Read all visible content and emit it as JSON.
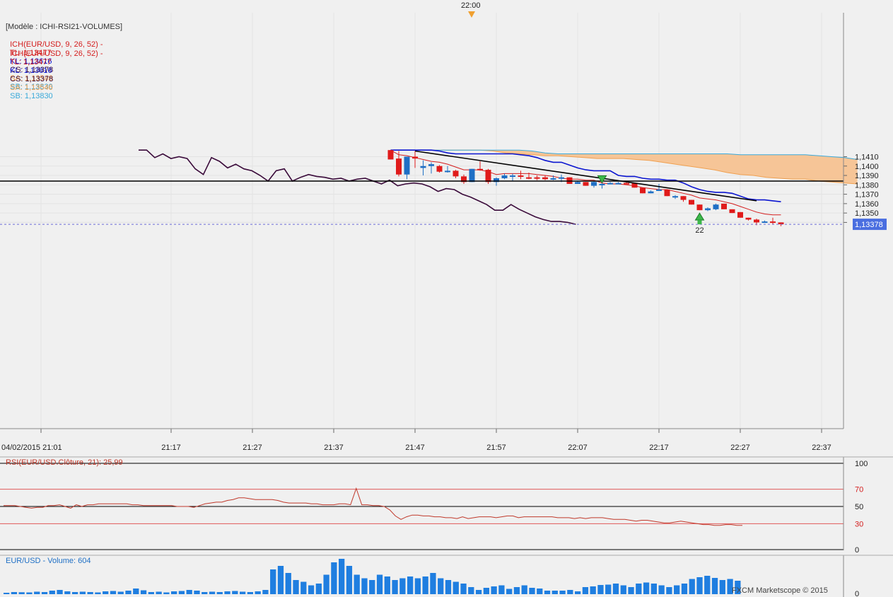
{
  "top_time_marker": "22:00",
  "template_label": "[Modèle : ICHI-RSI21-VOLUMES]",
  "ichimoku_legend": [
    {
      "prefix": "ICH(EUR/USD, 9, 26, 52) -",
      "tl": "TL: 1,13477",
      "kl": "KL: 1,13616",
      "cs": "CS: 1,13378",
      "sa": "SA: 1,13546",
      "sb": "SB: 1,13830"
    },
    {
      "prefix": "ICH(EUR/USD, 9, 26, 52) -",
      "tl": "TL: 1,13477",
      "kl": "KL: 1,13616",
      "cs": "CS: 1,13378",
      "sa": "SA: 1,13546",
      "sb": "SB: 1,13830"
    }
  ],
  "price_ticks": [
    "1,1410",
    "1,1400",
    "1,1390",
    "1,1380",
    "1,1370",
    "1,1360",
    "1,1350",
    "1,1340"
  ],
  "current_price_label": "1,13378",
  "time_ticks": [
    "04/02/2015 21:01",
    "21:17",
    "21:27",
    "21:37",
    "21:47",
    "21:57",
    "22:07",
    "22:17",
    "22:27",
    "22:37"
  ],
  "marker_label": "22",
  "rsi_title": "RSI(EUR/USD.Clôture, 21): 25,99",
  "rsi_ticks": [
    "100",
    "70",
    "50",
    "30",
    "0"
  ],
  "volume_title": "EUR/USD - Volume: 604",
  "volume_zero": "0",
  "watermark": "FXCM Marketscope © 2015",
  "colors": {
    "bull": "#1f6fc5",
    "bear": "#e01b1b",
    "tenkan": "#d41d1d",
    "kijun": "#0a14d0",
    "chikou": "#3a0a3a",
    "senkou_a": "#f0a050",
    "senkou_b": "#3aa9d9",
    "cloud": "#f6c597",
    "rsi": "#c0392b",
    "volume": "#1f7ee0"
  },
  "chart_data": {
    "type": "candlestick",
    "symbol": "EUR/USD",
    "timeframe_minutes": 1,
    "ylim": [
      1.1335,
      1.1417
    ],
    "candles": [
      {
        "t": "21:44",
        "o": 1.1417,
        "h": 1.1417,
        "l": 1.1407,
        "c": 1.1407
      },
      {
        "t": "21:45",
        "o": 1.1408,
        "h": 1.1416,
        "l": 1.1389,
        "c": 1.1391
      },
      {
        "t": "21:46",
        "o": 1.1391,
        "h": 1.141,
        "l": 1.1386,
        "c": 1.141
      },
      {
        "t": "21:47",
        "o": 1.141,
        "h": 1.1416,
        "l": 1.1398,
        "c": 1.1408
      },
      {
        "t": "21:48",
        "o": 1.1398,
        "h": 1.1406,
        "l": 1.139,
        "c": 1.14
      },
      {
        "t": "21:49",
        "o": 1.14,
        "h": 1.1404,
        "l": 1.1392,
        "c": 1.1402
      },
      {
        "t": "21:50",
        "o": 1.14,
        "h": 1.1401,
        "l": 1.1393,
        "c": 1.1394
      },
      {
        "t": "21:51",
        "o": 1.1395,
        "h": 1.14,
        "l": 1.1393,
        "c": 1.1395
      },
      {
        "t": "21:52",
        "o": 1.1395,
        "h": 1.1396,
        "l": 1.1387,
        "c": 1.1389
      },
      {
        "t": "21:53",
        "o": 1.1389,
        "h": 1.1391,
        "l": 1.1381,
        "c": 1.1383
      },
      {
        "t": "21:54",
        "o": 1.1383,
        "h": 1.1397,
        "l": 1.1383,
        "c": 1.1397
      },
      {
        "t": "21:55",
        "o": 1.1397,
        "h": 1.1405,
        "l": 1.1395,
        "c": 1.1396
      },
      {
        "t": "21:56",
        "o": 1.1396,
        "h": 1.1397,
        "l": 1.1381,
        "c": 1.1383
      },
      {
        "t": "21:57",
        "o": 1.1383,
        "h": 1.1388,
        "l": 1.1379,
        "c": 1.1387
      },
      {
        "t": "21:58",
        "o": 1.1387,
        "h": 1.1392,
        "l": 1.1386,
        "c": 1.139
      },
      {
        "t": "21:59",
        "o": 1.139,
        "h": 1.1392,
        "l": 1.1384,
        "c": 1.139
      },
      {
        "t": "22:00",
        "o": 1.139,
        "h": 1.1395,
        "l": 1.1386,
        "c": 1.1389
      },
      {
        "t": "22:01",
        "o": 1.1388,
        "h": 1.1393,
        "l": 1.1386,
        "c": 1.1387
      },
      {
        "t": "22:02",
        "o": 1.1388,
        "h": 1.139,
        "l": 1.1385,
        "c": 1.1387
      },
      {
        "t": "22:03",
        "o": 1.1388,
        "h": 1.139,
        "l": 1.1385,
        "c": 1.1386
      },
      {
        "t": "22:04",
        "o": 1.1386,
        "h": 1.139,
        "l": 1.1385,
        "c": 1.1387
      },
      {
        "t": "22:05",
        "o": 1.1387,
        "h": 1.1391,
        "l": 1.1383,
        "c": 1.1388
      },
      {
        "t": "22:06",
        "o": 1.1388,
        "h": 1.1388,
        "l": 1.1381,
        "c": 1.1381
      },
      {
        "t": "22:07",
        "o": 1.1381,
        "h": 1.1384,
        "l": 1.1381,
        "c": 1.1383
      },
      {
        "t": "22:08",
        "o": 1.1383,
        "h": 1.1383,
        "l": 1.1379,
        "c": 1.1379
      },
      {
        "t": "22:09",
        "o": 1.1379,
        "h": 1.1384,
        "l": 1.1377,
        "c": 1.1383
      },
      {
        "t": "22:10",
        "o": 1.138,
        "h": 1.1383,
        "l": 1.1376,
        "c": 1.1381
      },
      {
        "t": "22:11",
        "o": 1.1381,
        "h": 1.1383,
        "l": 1.1381,
        "c": 1.1382
      },
      {
        "t": "22:12",
        "o": 1.1381,
        "h": 1.1383,
        "l": 1.1381,
        "c": 1.1382
      },
      {
        "t": "22:13",
        "o": 1.1382,
        "h": 1.1383,
        "l": 1.1381,
        "c": 1.1381
      },
      {
        "t": "22:14",
        "o": 1.1382,
        "h": 1.1382,
        "l": 1.1377,
        "c": 1.1377
      },
      {
        "t": "22:15",
        "o": 1.1377,
        "h": 1.1377,
        "l": 1.1371,
        "c": 1.1371
      },
      {
        "t": "22:16",
        "o": 1.1371,
        "h": 1.1374,
        "l": 1.1371,
        "c": 1.1373
      },
      {
        "t": "22:17",
        "o": 1.1374,
        "h": 1.1381,
        "l": 1.1374,
        "c": 1.1375
      },
      {
        "t": "22:18",
        "o": 1.1375,
        "h": 1.1375,
        "l": 1.1368,
        "c": 1.1368
      },
      {
        "t": "22:19",
        "o": 1.1368,
        "h": 1.1369,
        "l": 1.1365,
        "c": 1.1368
      },
      {
        "t": "22:20",
        "o": 1.1368,
        "h": 1.1368,
        "l": 1.1362,
        "c": 1.1364
      },
      {
        "t": "22:21",
        "o": 1.1364,
        "h": 1.1364,
        "l": 1.1359,
        "c": 1.1359
      },
      {
        "t": "22:22",
        "o": 1.1359,
        "h": 1.1359,
        "l": 1.1353,
        "c": 1.1353
      },
      {
        "t": "22:23",
        "o": 1.1353,
        "h": 1.1356,
        "l": 1.1352,
        "c": 1.1355
      },
      {
        "t": "22:24",
        "o": 1.1354,
        "h": 1.136,
        "l": 1.1353,
        "c": 1.1359
      },
      {
        "t": "22:25",
        "o": 1.136,
        "h": 1.136,
        "l": 1.1354,
        "c": 1.1354
      },
      {
        "t": "22:26",
        "o": 1.1354,
        "h": 1.1354,
        "l": 1.135,
        "c": 1.135
      },
      {
        "t": "22:27",
        "o": 1.1351,
        "h": 1.1351,
        "l": 1.1345,
        "c": 1.1345
      },
      {
        "t": "22:28",
        "o": 1.1345,
        "h": 1.1345,
        "l": 1.1342,
        "c": 1.1343
      },
      {
        "t": "22:29",
        "o": 1.1343,
        "h": 1.1344,
        "l": 1.1337,
        "c": 1.134
      },
      {
        "t": "22:30",
        "o": 1.1341,
        "h": 1.1342,
        "l": 1.134,
        "c": 1.1341
      },
      {
        "t": "22:31",
        "o": 1.1341,
        "h": 1.1345,
        "l": 1.1338,
        "c": 1.134
      },
      {
        "t": "22:32",
        "o": 1.134,
        "h": 1.134,
        "l": 1.1336,
        "c": 1.1338
      }
    ],
    "tenkan": [
      1.1417,
      1.1412,
      1.1411,
      1.1409,
      1.1407,
      1.1405,
      1.1404,
      1.1402,
      1.1399,
      1.1396,
      1.1396,
      1.1396,
      1.1394,
      1.1391,
      1.1392,
      1.1392,
      1.1392,
      1.1392,
      1.1391,
      1.139,
      1.1389,
      1.1387,
      1.1386,
      1.1386,
      1.1385,
      1.1385,
      1.1382,
      1.1381,
      1.1381,
      1.138,
      1.1379,
      1.1377,
      1.1376,
      1.1375,
      1.1375,
      1.1373,
      1.1371,
      1.1369,
      1.1366,
      1.1365,
      1.1364,
      1.1362,
      1.136,
      1.1357,
      1.1354,
      1.1351,
      1.1349,
      1.1348,
      1.1348
    ],
    "kijun": [
      1.1417,
      1.1417,
      1.1417,
      1.1417,
      1.1417,
      1.1417,
      1.1416,
      1.1414,
      1.1413,
      1.1413,
      1.1413,
      1.1413,
      1.1413,
      1.1413,
      1.1413,
      1.1413,
      1.1412,
      1.1411,
      1.1409,
      1.1406,
      1.1404,
      1.1404,
      1.1401,
      1.1398,
      1.1396,
      1.1395,
      1.1395,
      1.1395,
      1.139,
      1.1389,
      1.1389,
      1.1387,
      1.1386,
      1.1386,
      1.1385,
      1.1385,
      1.1382,
      1.1378,
      1.1375,
      1.1373,
      1.1372,
      1.1372,
      1.1371,
      1.1368,
      1.1365,
      1.1364,
      1.1364,
      1.1363,
      1.1362
    ],
    "senkou_a": [
      1.1417,
      1.1417,
      1.1417,
      1.1417,
      1.1417,
      1.1417,
      1.1416,
      1.1414,
      1.1413,
      1.1412,
      1.1411,
      1.1411,
      1.141,
      1.1409,
      1.1408,
      1.1408,
      1.1408,
      1.1407,
      1.1406,
      1.1404,
      1.1402,
      1.14,
      1.1398,
      1.1396,
      1.1393,
      1.1391,
      1.139,
      1.1388,
      1.1387,
      1.1386,
      1.1386,
      1.1384,
      1.1383,
      1.1382,
      1.1381
    ],
    "senkou_b": [
      1.1417,
      1.1417,
      1.1417,
      1.1417,
      1.1417,
      1.1417,
      1.1417,
      1.1417,
      1.1417,
      1.1416,
      1.1414,
      1.1413,
      1.1413,
      1.1413,
      1.1413,
      1.1413,
      1.1413,
      1.1413,
      1.1413,
      1.1413,
      1.1413,
      1.1413,
      1.1413,
      1.1413,
      1.1413,
      1.1412,
      1.1412,
      1.1412,
      1.1412,
      1.1412,
      1.1412,
      1.1411,
      1.141,
      1.1409,
      1.1407
    ],
    "chikou": [
      1.1417,
      1.1417,
      1.1409,
      1.1413,
      1.1408,
      1.141,
      1.1408,
      1.1397,
      1.1391,
      1.1409,
      1.1405,
      1.1398,
      1.1402,
      1.1397,
      1.1395,
      1.139,
      1.1384,
      1.1395,
      1.1397,
      1.1384,
      1.1388,
      1.1391,
      1.1389,
      1.1388,
      1.1386,
      1.1387,
      1.1384,
      1.1386,
      1.1387,
      1.1384,
      1.1381,
      1.1385,
      1.1379,
      1.1381,
      1.1382,
      1.1381,
      1.1378,
      1.1373,
      1.1376,
      1.1375,
      1.137,
      1.1367,
      1.1363,
      1.1359,
      1.1353,
      1.1353,
      1.1359,
      1.1354,
      1.135,
      1.1346,
      1.1343,
      1.1341,
      1.1341,
      1.134,
      1.1338
    ],
    "horizontal_line": 1.1384,
    "trendline": [
      {
        "t": "21:47",
        "y": 1.1416
      },
      {
        "t": "22:29",
        "y": 1.1363
      }
    ],
    "arrows": [
      {
        "t": "22:10",
        "dir": "down"
      },
      {
        "t": "22:22",
        "dir": "up",
        "label": "22"
      }
    ],
    "rsi": {
      "period": 21,
      "levels": [
        100,
        70,
        50,
        30,
        0
      ],
      "last": 25.99,
      "values": [
        51,
        51,
        51,
        50,
        49,
        48,
        49,
        49,
        51,
        51,
        52,
        50,
        48,
        52,
        50,
        52,
        52,
        53,
        53,
        53,
        53,
        53,
        53,
        52,
        52,
        51,
        51,
        51,
        51,
        51,
        51,
        50,
        50,
        50,
        49,
        51,
        53,
        54,
        55,
        55,
        57,
        58,
        60,
        60,
        59,
        58,
        58,
        58,
        58,
        57,
        55,
        54,
        54,
        54,
        54,
        53,
        53,
        52,
        52,
        52,
        53,
        53,
        52,
        71,
        52,
        52,
        51,
        51,
        50,
        46,
        39,
        35,
        38,
        40,
        40,
        39,
        39,
        38,
        38,
        37,
        37,
        36,
        38,
        36,
        37,
        38,
        38,
        38,
        37,
        38,
        39,
        39,
        37,
        38,
        38,
        38,
        38,
        38,
        38,
        37,
        37,
        37,
        36,
        37,
        36,
        37,
        37,
        37,
        36,
        35,
        35,
        35,
        34,
        33,
        34,
        34,
        33,
        32,
        31,
        31,
        32,
        33,
        32,
        31,
        30,
        29,
        29,
        28,
        28,
        29,
        29,
        28,
        28
      ]
    },
    "volume": {
      "last": 604,
      "values": [
        40,
        60,
        55,
        50,
        70,
        60,
        100,
        120,
        80,
        60,
        70,
        60,
        50,
        80,
        90,
        70,
        100,
        160,
        110,
        60,
        70,
        50,
        80,
        90,
        120,
        100,
        60,
        70,
        60,
        80,
        90,
        70,
        60,
        80,
        120,
        700,
        800,
        600,
        400,
        350,
        250,
        300,
        550,
        900,
        1000,
        800,
        550,
        450,
        400,
        550,
        500,
        400,
        450,
        500,
        450,
        500,
        600,
        450,
        400,
        350,
        300,
        200,
        120,
        180,
        220,
        250,
        150,
        200,
        250,
        180,
        160,
        100,
        100,
        100,
        120,
        80,
        200,
        220,
        260,
        270,
        300,
        250,
        200,
        300,
        330,
        300,
        250,
        200,
        250,
        300,
        430,
        480,
        520,
        460,
        400,
        430,
        380
      ]
    }
  }
}
